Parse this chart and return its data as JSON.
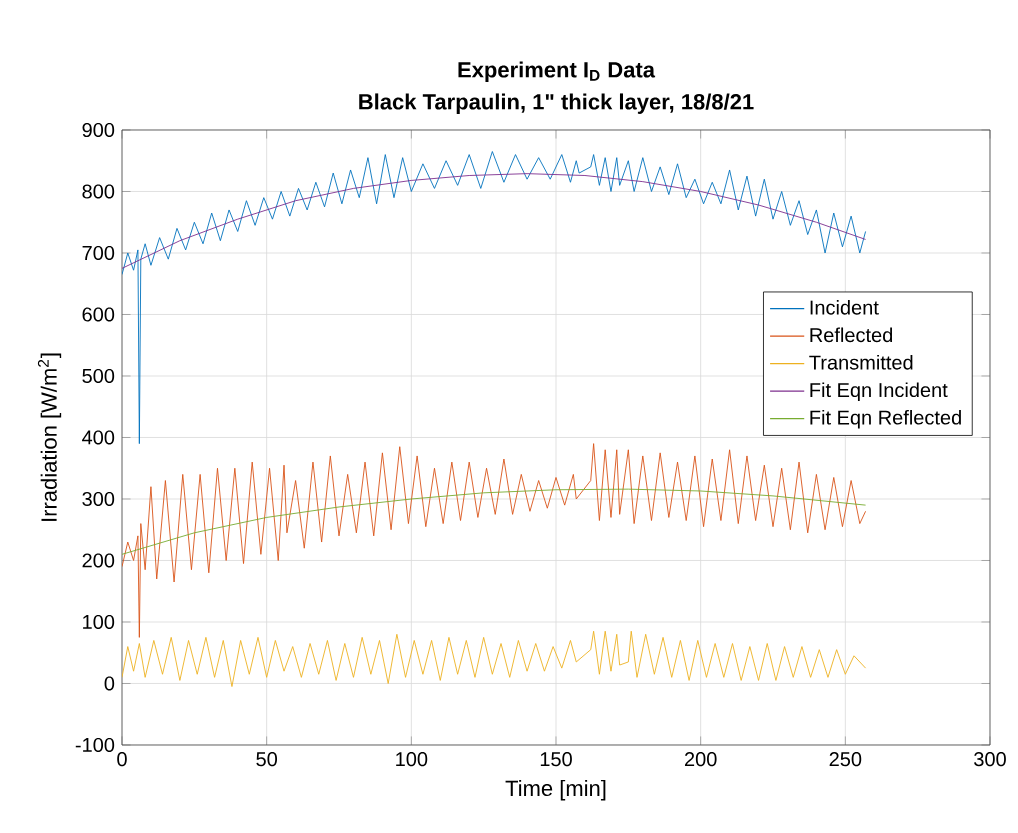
{
  "chart_data": {
    "type": "line",
    "title": "Experiment I$_{D}$ Data",
    "subtitle": "Black Tarpaulin, 1\" thick layer, 18/8/21",
    "xlabel": "Time [min]",
    "ylabel": "Irradiation [W/m$^{2}$]",
    "xlim": [
      0,
      300
    ],
    "ylim": [
      -100,
      900
    ],
    "xticks": [
      0,
      50,
      100,
      150,
      200,
      250,
      300
    ],
    "yticks": [
      -100,
      0,
      100,
      200,
      300,
      400,
      500,
      600,
      700,
      800,
      900
    ],
    "grid": true,
    "legend": "right",
    "series": [
      {
        "name": "Incident",
        "color": "#0072bd",
        "x": [
          0,
          2,
          4,
          5.5,
          6,
          6.5,
          8,
          10,
          13,
          16,
          19,
          22,
          25,
          28,
          31,
          34,
          37,
          40,
          43,
          46,
          49,
          52,
          55,
          58,
          61,
          64,
          67,
          70,
          73,
          76,
          79,
          82,
          85,
          88,
          91,
          94,
          97,
          100,
          104,
          108,
          112,
          116,
          120,
          124,
          128,
          132,
          136,
          140,
          144,
          148,
          152,
          155,
          157,
          158,
          162,
          163,
          165,
          167,
          169,
          171,
          172,
          175,
          177,
          180,
          183,
          186,
          189,
          192,
          195,
          198,
          201,
          204,
          207,
          210,
          213,
          216,
          219,
          222,
          225,
          228,
          231,
          234,
          237,
          240,
          243,
          246,
          249,
          252,
          255,
          257
        ],
        "values": [
          665,
          700,
          672,
          705,
          390,
          690,
          715,
          680,
          725,
          690,
          740,
          705,
          750,
          715,
          765,
          720,
          770,
          735,
          785,
          745,
          790,
          755,
          800,
          760,
          805,
          770,
          815,
          775,
          830,
          780,
          835,
          790,
          855,
          780,
          860,
          790,
          855,
          800,
          845,
          805,
          850,
          810,
          860,
          805,
          865,
          815,
          860,
          820,
          855,
          820,
          860,
          815,
          850,
          830,
          840,
          860,
          810,
          855,
          800,
          855,
          810,
          850,
          800,
          855,
          800,
          840,
          795,
          845,
          790,
          820,
          780,
          815,
          780,
          835,
          770,
          825,
          760,
          820,
          755,
          800,
          745,
          785,
          730,
          770,
          700,
          765,
          710,
          760,
          700,
          735
        ]
      },
      {
        "name": "Reflected",
        "color": "#d95319",
        "x": [
          0,
          2,
          4,
          5.5,
          6,
          6.5,
          8,
          10,
          12,
          15,
          18,
          21,
          24,
          27,
          30,
          33,
          36,
          39,
          42,
          45,
          48,
          51,
          54,
          56,
          57,
          60,
          63,
          66,
          69,
          72,
          75,
          78,
          81,
          84,
          87,
          90,
          93,
          96,
          99,
          102,
          105,
          108,
          111,
          114,
          117,
          120,
          123,
          126,
          129,
          132,
          135,
          138,
          141,
          144,
          147,
          150,
          153,
          156,
          157,
          162,
          163,
          165,
          167,
          169,
          171,
          172,
          175,
          177,
          180,
          183,
          186,
          189,
          192,
          195,
          198,
          201,
          204,
          207,
          210,
          213,
          216,
          219,
          222,
          225,
          228,
          231,
          234,
          237,
          240,
          243,
          246,
          249,
          252,
          255,
          257
        ],
        "values": [
          190,
          230,
          200,
          240,
          75,
          260,
          185,
          320,
          170,
          330,
          165,
          340,
          185,
          340,
          180,
          350,
          200,
          350,
          195,
          360,
          210,
          350,
          200,
          355,
          245,
          330,
          220,
          360,
          230,
          370,
          240,
          340,
          245,
          360,
          240,
          375,
          250,
          385,
          260,
          370,
          255,
          350,
          260,
          360,
          265,
          360,
          270,
          350,
          275,
          365,
          275,
          340,
          280,
          330,
          285,
          335,
          290,
          340,
          300,
          330,
          390,
          265,
          380,
          270,
          380,
          275,
          380,
          260,
          370,
          265,
          375,
          270,
          360,
          265,
          370,
          255,
          365,
          265,
          380,
          260,
          370,
          265,
          355,
          255,
          350,
          250,
          360,
          245,
          340,
          250,
          335,
          255,
          330,
          260,
          280
        ]
      },
      {
        "name": "Transmitted",
        "color": "#edb120",
        "x": [
          0,
          2,
          4,
          6,
          8,
          11,
          14,
          17,
          20,
          23,
          26,
          29,
          32,
          35,
          38,
          41,
          44,
          47,
          50,
          53,
          56,
          59,
          62,
          65,
          68,
          71,
          74,
          77,
          80,
          83,
          86,
          89,
          92,
          95,
          98,
          101,
          104,
          107,
          110,
          113,
          116,
          119,
          122,
          125,
          128,
          131,
          134,
          137,
          140,
          143,
          146,
          149,
          152,
          155,
          157,
          162,
          163,
          165,
          167,
          169,
          171,
          172,
          175,
          176,
          178,
          181,
          184,
          187,
          190,
          193,
          196,
          199,
          202,
          205,
          208,
          211,
          214,
          217,
          220,
          223,
          226,
          229,
          232,
          235,
          238,
          241,
          244,
          247,
          250,
          253,
          257
        ],
        "values": [
          10,
          60,
          20,
          65,
          10,
          70,
          15,
          75,
          5,
          70,
          15,
          75,
          10,
          70,
          -5,
          70,
          15,
          75,
          10,
          70,
          20,
          60,
          10,
          65,
          15,
          70,
          5,
          65,
          10,
          75,
          15,
          70,
          0,
          80,
          10,
          70,
          15,
          70,
          5,
          75,
          15,
          70,
          10,
          75,
          15,
          65,
          10,
          70,
          20,
          65,
          20,
          60,
          25,
          70,
          35,
          55,
          85,
          15,
          85,
          20,
          80,
          30,
          35,
          85,
          10,
          80,
          15,
          75,
          10,
          70,
          5,
          70,
          10,
          65,
          10,
          65,
          5,
          60,
          5,
          65,
          5,
          60,
          10,
          60,
          10,
          55,
          10,
          55,
          15,
          45,
          25
        ]
      },
      {
        "name": "Fit Eqn Incident",
        "color": "#7e2f8e",
        "x": [
          0,
          20,
          40,
          60,
          80,
          100,
          120,
          140,
          160,
          180,
          200,
          220,
          240,
          257
        ],
        "values": [
          675,
          720,
          755,
          785,
          805,
          818,
          826,
          829,
          826,
          816,
          800,
          778,
          750,
          722
        ]
      },
      {
        "name": "Fit Eqn Reflected",
        "color": "#77ac30",
        "x": [
          0,
          25,
          50,
          75,
          100,
          125,
          150,
          175,
          200,
          225,
          257
        ],
        "values": [
          210,
          245,
          270,
          287,
          300,
          310,
          315,
          316,
          313,
          305,
          290
        ]
      }
    ]
  }
}
